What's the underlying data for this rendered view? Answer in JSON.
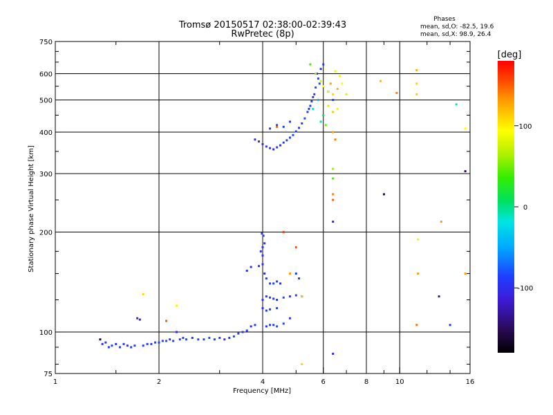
{
  "chart_data": {
    "type": "scatter",
    "title": "Tromsø 20150517 02:38:00-02:39:43",
    "subtitle": "RwPretec (8p)",
    "xlabel": "Frequency [MHz]",
    "ylabel": "Stationary phase Virtual Height [km]",
    "x_scale": "log",
    "y_scale": "log",
    "xlim": [
      1,
      16
    ],
    "ylim": [
      75,
      750
    ],
    "x_ticks": [
      1,
      2,
      4,
      6,
      8,
      10,
      16
    ],
    "y_ticks": [
      75,
      100,
      200,
      300,
      400,
      500,
      600,
      750
    ],
    "x_gridlines": [
      2,
      4,
      6,
      8,
      10
    ],
    "y_gridlines": [
      100,
      200,
      300,
      400,
      500,
      600
    ],
    "grid": true,
    "phase_box": {
      "heading": "Phases",
      "line1": "mean, sd,O:  -82.5, 19.6",
      "line2": "mean, sd,X:  98.9, 26.4"
    },
    "colorbar": {
      "label": "[deg]",
      "range": [
        -180,
        180
      ],
      "ticks": [
        100,
        0,
        -100
      ],
      "tick_labels": [
        "100",
        "0",
        "-100"
      ]
    },
    "series": [
      {
        "mode": "O",
        "points": [
          [
            1.37,
            92,
            -98
          ],
          [
            1.4,
            93,
            -95
          ],
          [
            1.43,
            90,
            -92
          ],
          [
            1.46,
            91,
            -88
          ],
          [
            1.5,
            92,
            -100
          ],
          [
            1.54,
            90,
            -94
          ],
          [
            1.58,
            92,
            -90
          ],
          [
            1.62,
            91,
            -97
          ],
          [
            1.66,
            90,
            -89
          ],
          [
            1.7,
            91,
            -93
          ],
          [
            1.73,
            110,
            -110
          ],
          [
            1.76,
            109,
            -115
          ],
          [
            1.8,
            91,
            -95
          ],
          [
            1.85,
            92,
            -90
          ],
          [
            1.9,
            92,
            -92
          ],
          [
            1.95,
            93,
            -88
          ],
          [
            2.0,
            93,
            -95
          ],
          [
            2.05,
            94,
            -90
          ],
          [
            2.1,
            94,
            -85
          ],
          [
            2.15,
            95,
            -92
          ],
          [
            2.2,
            94,
            -88
          ],
          [
            2.25,
            100,
            -100
          ],
          [
            2.3,
            95,
            -95
          ],
          [
            2.35,
            96,
            -90
          ],
          [
            2.4,
            95,
            -86
          ],
          [
            2.5,
            96,
            -94
          ],
          [
            2.6,
            95,
            -88
          ],
          [
            2.7,
            95,
            -90
          ],
          [
            2.8,
            96,
            -85
          ],
          [
            2.9,
            95,
            -91
          ],
          [
            3.0,
            96,
            -96
          ],
          [
            3.1,
            95,
            -100
          ],
          [
            3.2,
            96,
            -92
          ],
          [
            3.3,
            97,
            -88
          ],
          [
            3.4,
            99,
            -94
          ],
          [
            3.5,
            100,
            -90
          ],
          [
            3.6,
            101,
            -92
          ],
          [
            3.7,
            104,
            -95
          ],
          [
            3.8,
            105,
            -90
          ],
          [
            3.6,
            153,
            -98
          ],
          [
            3.7,
            157,
            -100
          ],
          [
            3.9,
            158,
            -95
          ],
          [
            4.0,
            160,
            -100
          ],
          [
            4.05,
            150,
            -105
          ],
          [
            3.95,
            175,
            -100
          ],
          [
            4.0,
            180,
            -95
          ],
          [
            4.05,
            185,
            -98
          ],
          [
            4.02,
            195,
            -100
          ],
          [
            3.98,
            198,
            -96
          ],
          [
            4.0,
            170,
            -102
          ],
          [
            4.1,
            145,
            -95
          ],
          [
            4.2,
            140,
            -92
          ],
          [
            4.3,
            140,
            -88
          ],
          [
            4.4,
            142,
            -90
          ],
          [
            4.5,
            140,
            -95
          ],
          [
            4.0,
            125,
            -94
          ],
          [
            4.1,
            128,
            -96
          ],
          [
            4.2,
            127,
            -90
          ],
          [
            4.3,
            126,
            -92
          ],
          [
            4.4,
            125,
            -94
          ],
          [
            4.6,
            127,
            -85
          ],
          [
            4.8,
            128,
            -90
          ],
          [
            5.0,
            129,
            -92
          ],
          [
            5.2,
            128,
            -88
          ],
          [
            4.0,
            118,
            -100
          ],
          [
            4.1,
            116,
            -95
          ],
          [
            4.2,
            117,
            -92
          ],
          [
            4.4,
            118,
            -90
          ],
          [
            4.1,
            104,
            -95
          ],
          [
            4.2,
            105,
            -92
          ],
          [
            4.3,
            105,
            -90
          ],
          [
            4.4,
            104,
            -85
          ],
          [
            4.6,
            106,
            -88
          ],
          [
            4.8,
            110,
            -90
          ],
          [
            5.0,
            150,
            -95
          ],
          [
            5.1,
            145,
            -92
          ],
          [
            3.8,
            380,
            -100
          ],
          [
            3.9,
            375,
            -95
          ],
          [
            4.0,
            368,
            -100
          ],
          [
            4.1,
            362,
            -98
          ],
          [
            4.2,
            358,
            -95
          ],
          [
            4.3,
            355,
            -100
          ],
          [
            4.4,
            360,
            -92
          ],
          [
            4.5,
            365,
            -96
          ],
          [
            4.6,
            372,
            -90
          ],
          [
            4.7,
            378,
            -88
          ],
          [
            4.8,
            385,
            -92
          ],
          [
            4.9,
            392,
            -85
          ],
          [
            5.0,
            402,
            -90
          ],
          [
            5.1,
            412,
            -88
          ],
          [
            5.2,
            425,
            -92
          ],
          [
            5.3,
            440,
            -85
          ],
          [
            5.4,
            460,
            -90
          ],
          [
            5.5,
            480,
            -88
          ],
          [
            5.6,
            510,
            -92
          ],
          [
            5.7,
            545,
            -86
          ],
          [
            5.8,
            580,
            -90
          ],
          [
            5.9,
            620,
            -95
          ],
          [
            6.0,
            640,
            -92
          ],
          [
            5.75,
            600,
            -98
          ],
          [
            5.85,
            560,
            -85
          ],
          [
            5.65,
            520,
            -88
          ],
          [
            5.55,
            495,
            -90
          ],
          [
            5.45,
            470,
            -92
          ],
          [
            4.2,
            410,
            -95
          ],
          [
            4.4,
            420,
            -90
          ],
          [
            4.6,
            415,
            -92
          ],
          [
            4.8,
            430,
            -96
          ],
          [
            6.4,
            86,
            -110
          ],
          [
            6.4,
            215,
            -110
          ],
          [
            6.2,
            530,
            -92
          ],
          [
            6.4,
            500,
            -88
          ],
          [
            13.0,
            128,
            -130
          ],
          [
            14.0,
            105,
            -95
          ]
        ]
      },
      {
        "mode": "X",
        "points": [
          [
            5.5,
            640,
            40
          ],
          [
            5.7,
            600,
            60
          ],
          [
            5.9,
            570,
            75
          ],
          [
            6.0,
            550,
            90
          ],
          [
            6.2,
            530,
            100
          ],
          [
            6.4,
            520,
            110
          ],
          [
            6.6,
            540,
            120
          ],
          [
            6.8,
            560,
            95
          ],
          [
            7.0,
            520,
            80
          ],
          [
            6.2,
            480,
            105
          ],
          [
            6.4,
            460,
            115
          ],
          [
            6.6,
            470,
            90
          ],
          [
            6.3,
            560,
            130
          ],
          [
            6.5,
            610,
            85
          ],
          [
            6.7,
            590,
            100
          ],
          [
            5.8,
            500,
            -40
          ],
          [
            5.6,
            470,
            -20
          ],
          [
            6.0,
            450,
            20
          ],
          [
            6.1,
            420,
            50
          ],
          [
            5.9,
            430,
            -10
          ],
          [
            6.4,
            400,
            130
          ],
          [
            6.5,
            380,
            140
          ],
          [
            6.4,
            310,
            60
          ],
          [
            6.4,
            290,
            40
          ],
          [
            6.4,
            260,
            140
          ],
          [
            6.4,
            250,
            150
          ],
          [
            8.8,
            570,
            120
          ],
          [
            9.8,
            525,
            140
          ],
          [
            11.2,
            615,
            125
          ],
          [
            11.2,
            560,
            110
          ],
          [
            11.2,
            520,
            115
          ],
          [
            11.2,
            105,
            145
          ],
          [
            11.3,
            190,
            100
          ],
          [
            11.3,
            150,
            130
          ],
          [
            13.2,
            215,
            130
          ],
          [
            14.6,
            485,
            -10
          ],
          [
            15.5,
            410,
            95
          ],
          [
            15.5,
            305,
            -150
          ],
          [
            15.5,
            150,
            130
          ],
          [
            9.0,
            260,
            -150
          ],
          [
            5.2,
            80,
            110
          ],
          [
            5.0,
            180,
            150
          ],
          [
            4.6,
            200,
            160
          ],
          [
            4.8,
            150,
            130
          ],
          [
            5.2,
            128,
            120
          ],
          [
            1.8,
            130,
            110
          ],
          [
            2.25,
            120,
            100
          ],
          [
            2.1,
            108,
            150
          ],
          [
            1.35,
            95,
            -160
          ],
          [
            4.4,
            415,
            150
          ]
        ]
      }
    ]
  }
}
